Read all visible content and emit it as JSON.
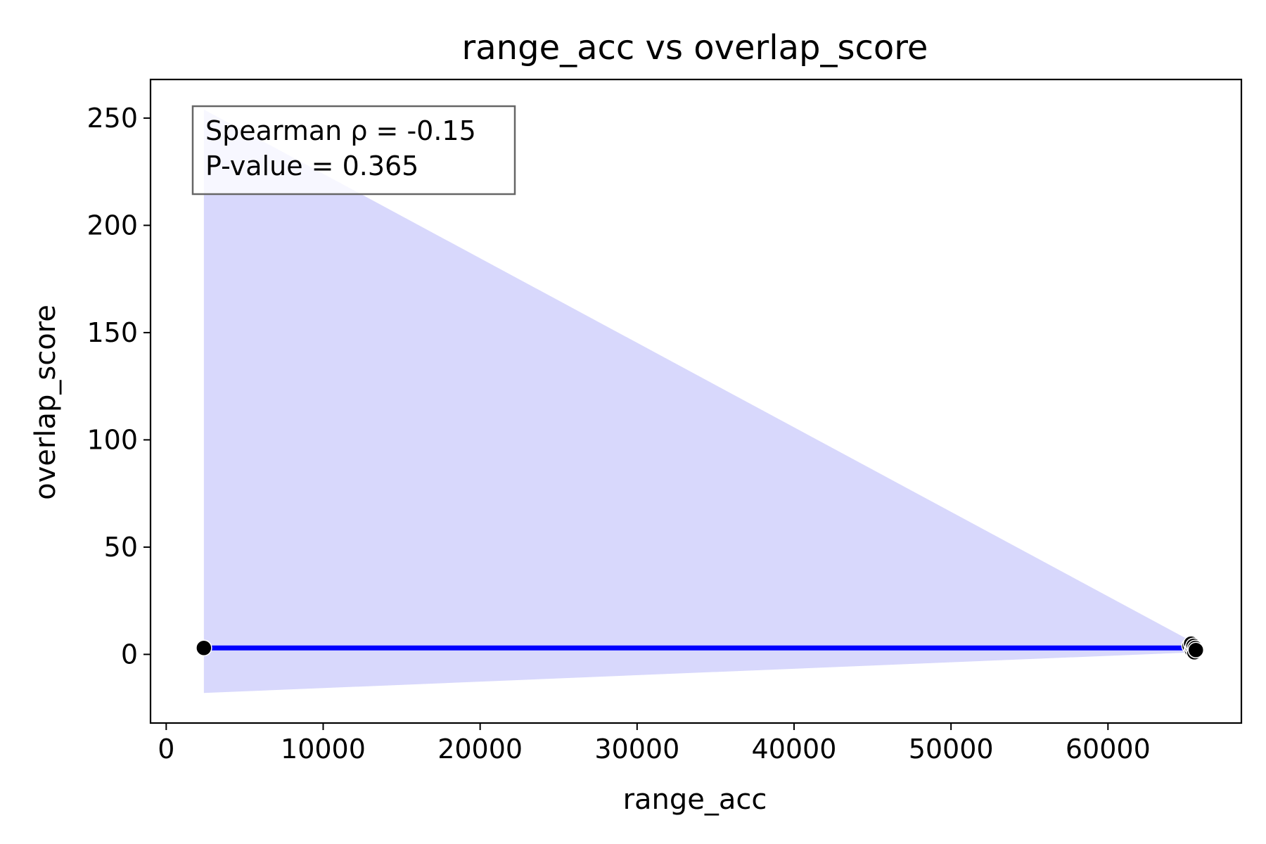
{
  "chart_data": {
    "type": "scatter",
    "title": "range_acc vs overlap_score",
    "xlabel": "range_acc",
    "ylabel": "overlap_score",
    "xlim": [
      -1000,
      68500
    ],
    "ylim": [
      -32,
      268
    ],
    "xticks": [
      0,
      10000,
      20000,
      30000,
      40000,
      50000,
      60000
    ],
    "yticks": [
      0,
      50,
      100,
      150,
      200,
      250
    ],
    "grid": false,
    "points": [
      {
        "x": 2400,
        "y": 3
      },
      {
        "x": 65200,
        "y": 4
      },
      {
        "x": 65300,
        "y": 5
      },
      {
        "x": 65350,
        "y": 2
      },
      {
        "x": 65400,
        "y": 3
      },
      {
        "x": 65450,
        "y": 4
      },
      {
        "x": 65500,
        "y": 1
      },
      {
        "x": 65550,
        "y": 3
      },
      {
        "x": 65600,
        "y": 2
      }
    ],
    "regression_line": {
      "x": [
        2400,
        65600
      ],
      "y": [
        3,
        3
      ]
    },
    "confidence_band": {
      "x": [
        2400,
        65600
      ],
      "upper": [
        254,
        5
      ],
      "lower": [
        -18,
        1
      ]
    },
    "annotation": {
      "line1": "Spearman ρ = -0.15",
      "line2": "P-value = 0.365",
      "placement": "top-left"
    },
    "colors": {
      "points": "#000000",
      "point_edge": "#ffffff",
      "line": "#0000ff",
      "band": "#d8d8fc",
      "annotation_border": "#666666"
    }
  }
}
